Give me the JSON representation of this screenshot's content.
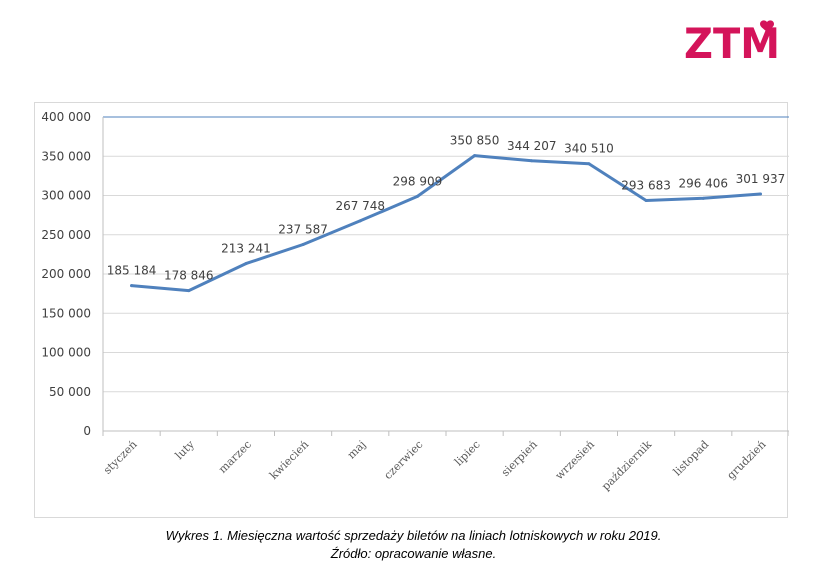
{
  "logo": {
    "text": "ZTM",
    "color": "#d4145a"
  },
  "caption": {
    "line1": "Wykres 1. Miesięczna wartość sprzedaży biletów na liniach lotniskowych w roku 2019.",
    "line2": "Źródło: opracowanie własne."
  },
  "chart_data": {
    "type": "line",
    "categories": [
      "styczeń",
      "luty",
      "marzec",
      "kwiecień",
      "maj",
      "czerwiec",
      "lipiec",
      "sierpień",
      "wrzesień",
      "październik",
      "listopad",
      "grudzień"
    ],
    "values": [
      185184,
      178846,
      213241,
      237587,
      267748,
      298909,
      350850,
      344207,
      340510,
      293683,
      296406,
      301937
    ],
    "data_labels": [
      "185 184",
      "178 846",
      "213 241",
      "237 587",
      "267 748",
      "298 909",
      "350 850",
      "344 207",
      "340 510",
      "293 683",
      "296 406",
      "301 937"
    ],
    "y_ticks": [
      0,
      50000,
      100000,
      150000,
      200000,
      250000,
      300000,
      350000,
      400000
    ],
    "y_tick_labels": [
      "0",
      "50 000",
      "100 000",
      "150 000",
      "200 000",
      "250 000",
      "300 000",
      "350 000",
      "400 000"
    ],
    "ylim": [
      0,
      400000
    ],
    "grid": true,
    "line_color": "#4f81bd",
    "legend": "none",
    "title": "",
    "xlabel": "",
    "ylabel": ""
  }
}
